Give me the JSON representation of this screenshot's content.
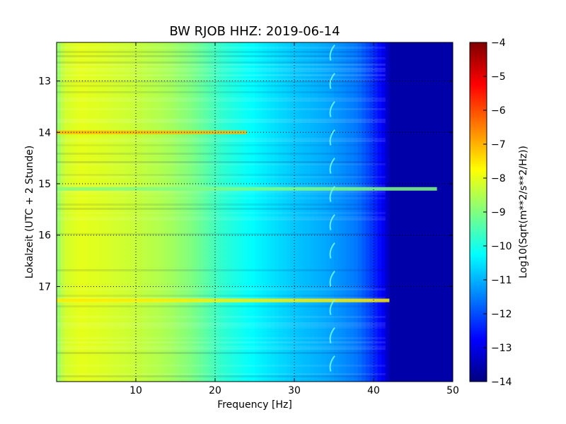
{
  "chart_data": {
    "type": "heatmap",
    "title": "BW RJOB HHZ: 2019-06-14",
    "xlabel": "Frequency [Hz]",
    "ylabel": "Lokalzeit (UTC + 2 Stunde)",
    "colorbar_label": "Log10(Sqrt(m**2/s**2/Hz))",
    "xlim": [
      0,
      50
    ],
    "ylim": [
      12.25,
      18.85
    ],
    "y_inverted": true,
    "xticks": [
      10,
      20,
      30,
      40,
      50
    ],
    "yticks": [
      13,
      14,
      15,
      16,
      17
    ],
    "color_range": [
      -14,
      -4
    ],
    "colorbar_ticks": [
      -4,
      -5,
      -6,
      -7,
      -8,
      -9,
      -10,
      -11,
      -12,
      -13,
      -14
    ],
    "colormap": "jet",
    "grid": true,
    "spectral_profile": {
      "frequency_hz": [
        0,
        1,
        3,
        6,
        10,
        14,
        17,
        19,
        21,
        25,
        30,
        34,
        38,
        40,
        41.5,
        42,
        50
      ],
      "log_psd": [
        -8.9,
        -8.2,
        -8.0,
        -8.1,
        -8.3,
        -8.6,
        -9.0,
        -9.4,
        -9.8,
        -10.3,
        -10.8,
        -11.1,
        -11.6,
        -12.3,
        -13.0,
        -13.6,
        -13.6
      ]
    },
    "strong_events": [
      {
        "time": 14.0,
        "f_max_hz": 24,
        "log_psd": -7.0
      },
      {
        "time": 15.1,
        "f_max_hz": 48,
        "log_psd": -9.0
      },
      {
        "time": 17.27,
        "f_max_hz": 42,
        "log_psd": -7.6
      }
    ],
    "narrowband_line_hz": 34.6
  }
}
